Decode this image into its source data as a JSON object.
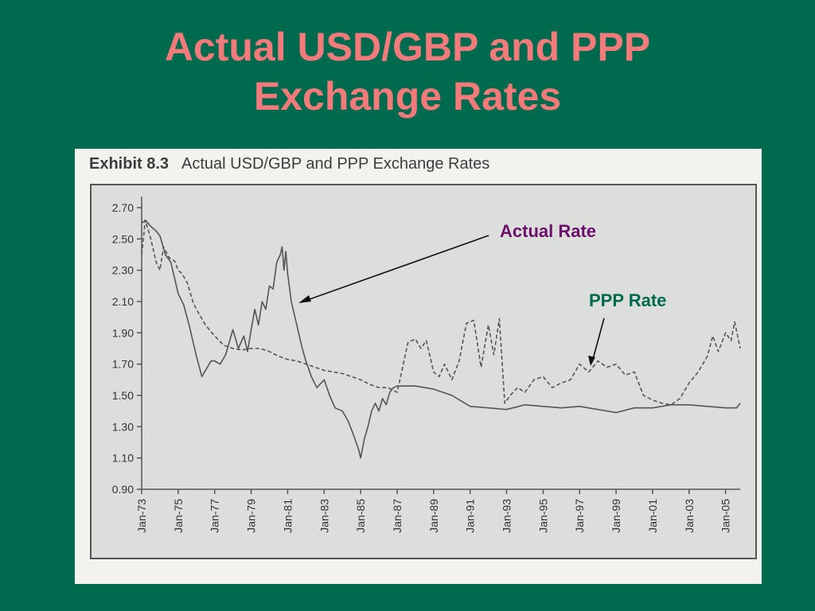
{
  "slide": {
    "title_line1": "Actual USD/GBP and PPP",
    "title_line2": "Exchange Rates"
  },
  "exhibit": {
    "label": "Exhibit 8.3",
    "caption": "Actual USD/GBP and PPP Exchange Rates"
  },
  "annotations": {
    "actual": "Actual Rate",
    "ppp": "PPP Rate"
  },
  "colors": {
    "background": "#006a4e",
    "title": "#f27a7a",
    "actual_label": "#6b0f6b",
    "ppp_label": "#006a4e",
    "plot_area": "#d9dbd8",
    "line": "#555555"
  },
  "chart_data": {
    "type": "line",
    "title": "",
    "xlabel": "",
    "ylabel": "",
    "ylim": [
      0.9,
      2.7
    ],
    "xlim": [
      1973.0,
      2005.8
    ],
    "yticks": [
      "2.70",
      "2.50",
      "2.30",
      "2.10",
      "1.90",
      "1.70",
      "1.50",
      "1.30",
      "1.10",
      "0.90"
    ],
    "ytick_values": [
      2.7,
      2.5,
      2.3,
      2.1,
      1.9,
      1.7,
      1.5,
      1.3,
      1.1,
      0.9
    ],
    "xticks": [
      "Jan-73",
      "Jan-75",
      "Jan-77",
      "Jan-79",
      "Jan-81",
      "Jan-83",
      "Jan-85",
      "Jan-87",
      "Jan-89",
      "Jan-91",
      "Jan-93",
      "Jan-95",
      "Jan-97",
      "Jan-99",
      "Jan-01",
      "Jan-03",
      "Jan-05"
    ],
    "xtick_values": [
      1973,
      1975,
      1977,
      1979,
      1981,
      1983,
      1985,
      1987,
      1989,
      1991,
      1993,
      1995,
      1997,
      1999,
      2001,
      2003,
      2005
    ],
    "grid": false,
    "legend": "none",
    "series": [
      {
        "style": "dashed",
        "x": [
          1973.0,
          1973.2,
          1973.5,
          1973.8,
          1974.0,
          1974.2,
          1974.5,
          1974.8,
          1975.0,
          1975.2,
          1975.5,
          1975.8,
          1976.0,
          1976.5,
          1977.0,
          1977.5,
          1978.0,
          1978.5,
          1979.0,
          1979.5,
          1980.0,
          1980.5,
          1981.0,
          1981.5,
          1982.0,
          1983.0,
          1984.0,
          1985.0,
          1985.5,
          1986.0,
          1986.5,
          1987.0,
          1987.3,
          1987.6,
          1988.0,
          1988.3,
          1988.6,
          1989.0,
          1989.3,
          1989.6,
          1990.0,
          1990.4,
          1990.8,
          1991.2,
          1991.6,
          1992.0,
          1992.3,
          1992.6,
          1992.9,
          1993.2,
          1993.6,
          1994.0,
          1994.5,
          1995.0,
          1995.5,
          1996.0,
          1996.5,
          1997.0,
          1997.5,
          1998.0,
          1998.5,
          1999.0,
          1999.5,
          2000.0,
          2000.5,
          2001.0,
          2001.5,
          2002.0,
          2002.5,
          2003.0,
          2003.5,
          2004.0,
          2004.3,
          2004.6,
          2005.0,
          2005.3,
          2005.5,
          2005.8
        ],
        "values": [
          2.4,
          2.62,
          2.5,
          2.35,
          2.3,
          2.45,
          2.38,
          2.36,
          2.3,
          2.28,
          2.22,
          2.1,
          2.05,
          1.95,
          1.88,
          1.82,
          1.8,
          1.79,
          1.8,
          1.8,
          1.78,
          1.75,
          1.73,
          1.72,
          1.7,
          1.66,
          1.64,
          1.6,
          1.57,
          1.55,
          1.55,
          1.52,
          1.68,
          1.84,
          1.86,
          1.8,
          1.85,
          1.65,
          1.62,
          1.7,
          1.6,
          1.72,
          1.96,
          1.98,
          1.68,
          1.95,
          1.76,
          1.99,
          1.45,
          1.5,
          1.55,
          1.52,
          1.6,
          1.62,
          1.55,
          1.58,
          1.6,
          1.7,
          1.65,
          1.72,
          1.68,
          1.7,
          1.63,
          1.65,
          1.5,
          1.47,
          1.45,
          1.44,
          1.48,
          1.58,
          1.65,
          1.75,
          1.88,
          1.78,
          1.9,
          1.85,
          1.97,
          1.8
        ]
      },
      {
        "style": "solid",
        "x": [
          1973.0,
          1973.2,
          1973.5,
          1973.8,
          1974.0,
          1974.3,
          1974.6,
          1975.0,
          1975.3,
          1975.6,
          1976.0,
          1976.3,
          1976.6,
          1976.8,
          1977.0,
          1977.3,
          1977.6,
          1978.0,
          1978.3,
          1978.6,
          1978.8,
          1979.0,
          1979.2,
          1979.4,
          1979.6,
          1979.8,
          1980.0,
          1980.2,
          1980.4,
          1980.6,
          1980.7,
          1980.8,
          1980.9,
          1981.0,
          1981.2,
          1981.4,
          1981.6,
          1981.8,
          1982.0,
          1982.3,
          1982.6,
          1983.0,
          1983.3,
          1983.6,
          1984.0,
          1984.3,
          1984.6,
          1984.9,
          1985.0,
          1985.2,
          1985.4,
          1985.6,
          1985.8,
          1986.0,
          1986.2,
          1986.4,
          1986.6,
          1986.8,
          1987.0,
          1988.0,
          1989.0,
          1990.0,
          1991.0,
          1992.0,
          1993.0,
          1994.0,
          1995.0,
          1996.0,
          1997.0,
          1998.0,
          1999.0,
          2000.0,
          2001.0,
          2002.0,
          2003.0,
          2004.0,
          2005.0,
          2005.6,
          2005.8
        ],
        "values": [
          2.6,
          2.62,
          2.58,
          2.55,
          2.52,
          2.4,
          2.35,
          2.15,
          2.08,
          1.95,
          1.75,
          1.62,
          1.68,
          1.72,
          1.72,
          1.7,
          1.76,
          1.92,
          1.8,
          1.88,
          1.78,
          1.92,
          2.05,
          1.95,
          2.1,
          2.05,
          2.2,
          2.18,
          2.35,
          2.4,
          2.45,
          2.3,
          2.42,
          2.28,
          2.1,
          2.0,
          1.9,
          1.8,
          1.72,
          1.62,
          1.55,
          1.6,
          1.5,
          1.42,
          1.4,
          1.34,
          1.25,
          1.15,
          1.1,
          1.22,
          1.3,
          1.4,
          1.45,
          1.4,
          1.48,
          1.44,
          1.52,
          1.55,
          1.56,
          1.56,
          1.54,
          1.5,
          1.43,
          1.42,
          1.41,
          1.44,
          1.43,
          1.42,
          1.43,
          1.41,
          1.39,
          1.42,
          1.42,
          1.44,
          1.44,
          1.43,
          1.42,
          1.42,
          1.45
        ]
      }
    ]
  }
}
